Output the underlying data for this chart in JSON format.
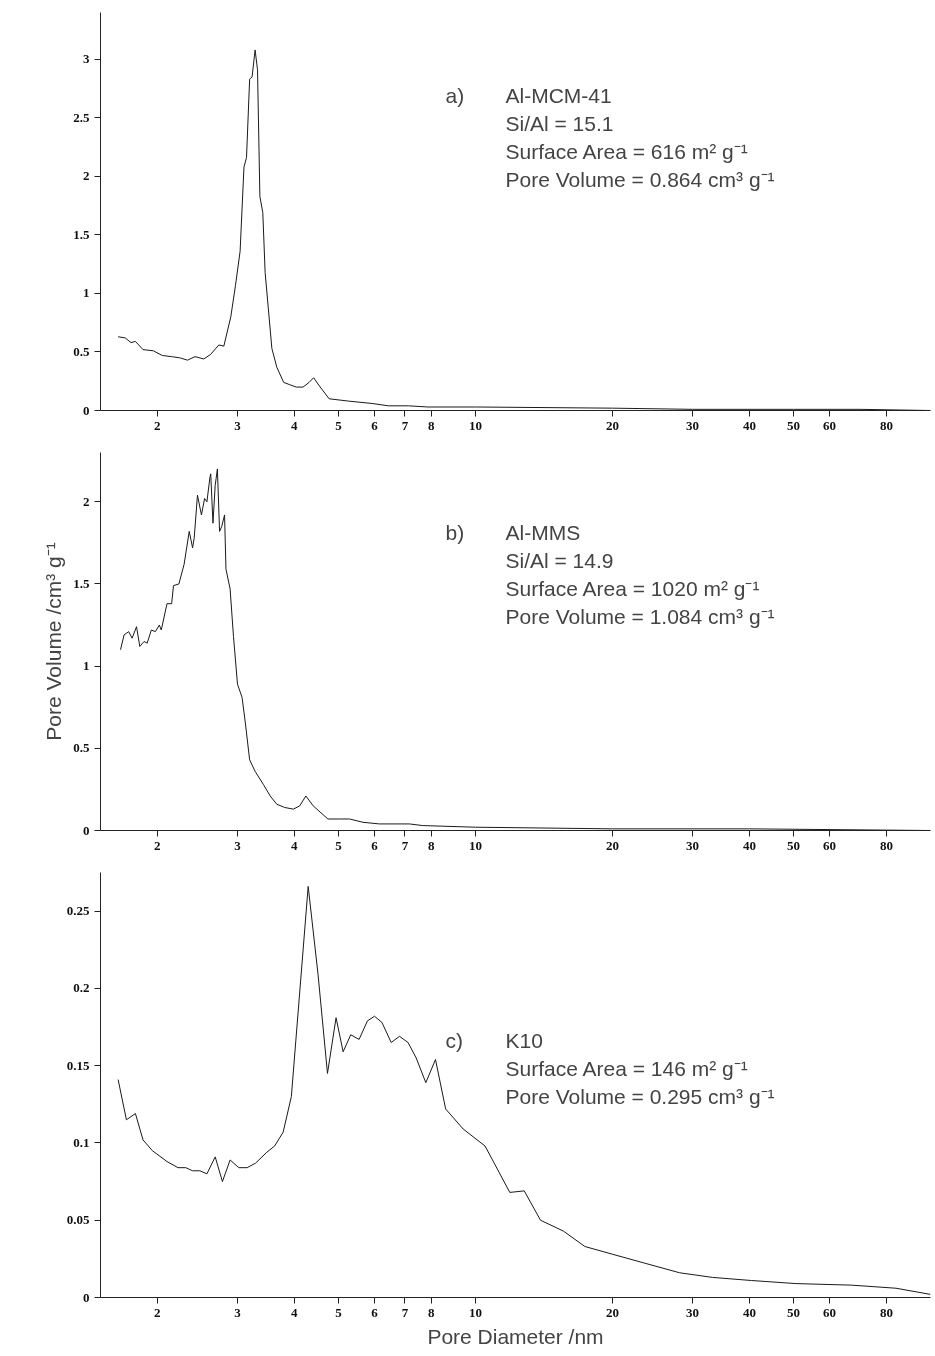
{
  "chart_data": [
    {
      "type": "line",
      "log": "x",
      "grid": false,
      "xlim": [
        1.5,
        100
      ],
      "xticks": [
        2,
        3,
        4,
        5,
        6,
        7,
        8,
        10,
        20,
        30,
        40,
        50,
        60,
        80
      ],
      "ylim": [
        0,
        3.4
      ],
      "yticks": [
        0,
        0.5,
        1,
        1.5,
        2,
        2.5,
        3
      ],
      "annotations": [
        "a)",
        "Al-MCM-41",
        "Si/Al = 15.1",
        "Surface Area = 616 m² g⁻¹",
        "Pore Volume =  0.864 cm³ g⁻¹"
      ],
      "x": [
        1.64,
        1.7,
        1.75,
        1.79,
        1.86,
        1.96,
        2.05,
        2.15,
        2.24,
        2.33,
        2.42,
        2.53,
        2.62,
        2.73,
        2.8,
        2.9,
        2.97,
        3.04,
        3.1,
        3.14,
        3.19,
        3.23,
        3.28,
        3.32,
        3.36,
        3.41,
        3.45,
        3.57,
        3.66,
        3.79,
        3.91,
        4.04,
        4.18,
        4.31,
        4.41,
        4.54,
        4.77,
        5.27,
        5.93,
        6.44,
        7.12,
        7.86,
        10,
        20,
        30,
        50,
        70,
        100
      ],
      "series": [
        {
          "color": "#1a1a1a",
          "values": [
            0.63,
            0.62,
            0.58,
            0.59,
            0.52,
            0.51,
            0.47,
            0.46,
            0.45,
            0.43,
            0.46,
            0.44,
            0.48,
            0.56,
            0.55,
            0.8,
            1.07,
            1.36,
            2.08,
            2.16,
            2.83,
            2.85,
            3.08,
            2.91,
            1.83,
            1.69,
            1.18,
            0.53,
            0.37,
            0.24,
            0.22,
            0.2,
            0.2,
            0.24,
            0.28,
            0.21,
            0.1,
            0.08,
            0.06,
            0.04,
            0.04,
            0.03,
            0.03,
            0.02,
            0.01,
            0.01,
            0.01,
            0
          ]
        }
      ]
    },
    {
      "type": "line",
      "log": "x",
      "grid": false,
      "ylabel": "Pore Volume /cm³ g⁻¹",
      "xlim": [
        1.5,
        100
      ],
      "xticks": [
        2,
        3,
        4,
        5,
        6,
        7,
        8,
        10,
        20,
        30,
        40,
        50,
        60,
        80
      ],
      "ylim": [
        0,
        2.3
      ],
      "yticks": [
        0,
        0.5,
        1,
        1.5,
        2
      ],
      "annotations": [
        "b)",
        "Al-MMS",
        "Si/Al = 14.9",
        "Surface Area = 1020 m² g⁻¹",
        "Pore Volume = 1.084 cm³ g⁻¹"
      ],
      "x": [
        1.66,
        1.69,
        1.73,
        1.76,
        1.8,
        1.83,
        1.87,
        1.9,
        1.94,
        1.98,
        2.02,
        2.04,
        2.1,
        2.15,
        2.17,
        2.23,
        2.29,
        2.35,
        2.39,
        2.41,
        2.45,
        2.5,
        2.54,
        2.57,
        2.61,
        2.62,
        2.65,
        2.68,
        2.71,
        2.74,
        2.77,
        2.81,
        2.83,
        2.89,
        2.94,
        3.0,
        3.07,
        3.12,
        3.19,
        3.28,
        3.42,
        3.54,
        3.66,
        3.81,
        3.98,
        4.11,
        4.24,
        4.4,
        4.74,
        5.03,
        5.29,
        5.66,
        6.15,
        7.16,
        7.66,
        10,
        20,
        40,
        100
      ],
      "series": [
        {
          "color": "#1a1a1a",
          "values": [
            1.1,
            1.19,
            1.21,
            1.17,
            1.24,
            1.12,
            1.15,
            1.14,
            1.22,
            1.21,
            1.25,
            1.22,
            1.38,
            1.38,
            1.49,
            1.5,
            1.62,
            1.82,
            1.72,
            1.78,
            2.04,
            1.92,
            2.02,
            2.0,
            2.15,
            2.17,
            1.87,
            2.1,
            2.2,
            1.82,
            1.85,
            1.92,
            1.59,
            1.47,
            1.18,
            0.89,
            0.81,
            0.66,
            0.43,
            0.36,
            0.28,
            0.21,
            0.16,
            0.14,
            0.13,
            0.15,
            0.21,
            0.15,
            0.07,
            0.07,
            0.07,
            0.05,
            0.04,
            0.04,
            0.03,
            0.02,
            0.01,
            0.01,
            0
          ]
        }
      ]
    },
    {
      "type": "line",
      "log": "x",
      "grid": false,
      "xlabel": "Pore Diameter /nm",
      "xlim": [
        1.5,
        100
      ],
      "xticks": [
        2,
        3,
        4,
        5,
        6,
        7,
        8,
        10,
        20,
        30,
        40,
        50,
        60,
        80
      ],
      "ylim": [
        0,
        0.275
      ],
      "yticks": [
        0,
        0.05,
        0.1,
        0.15,
        0.2,
        0.25
      ],
      "annotations": [
        "c)",
        "K10",
        "Surface Area = 146 m² g⁻¹",
        "Pore Volume = 0.295 cm³ g⁻¹"
      ],
      "x": [
        1.64,
        1.71,
        1.79,
        1.86,
        1.95,
        2.1,
        2.22,
        2.31,
        2.39,
        2.48,
        2.57,
        2.68,
        2.78,
        2.89,
        3.02,
        3.15,
        3.29,
        3.48,
        3.62,
        3.78,
        3.94,
        4.29,
        4.51,
        4.73,
        4.94,
        5.12,
        5.32,
        5.55,
        5.79,
        6.0,
        6.23,
        6.53,
        6.81,
        7.11,
        7.41,
        7.78,
        8.17,
        8.6,
        9.4,
        10.5,
        11.9,
        12.8,
        13.9,
        15.6,
        17.4,
        20.0,
        23.7,
        28.1,
        33.2,
        40.4,
        50.6,
        67.0,
        84.0,
        100
      ],
      "series": [
        {
          "color": "#1a1a1a",
          "values": [
            0.141,
            0.115,
            0.119,
            0.102,
            0.095,
            0.088,
            0.084,
            0.084,
            0.082,
            0.082,
            0.08,
            0.091,
            0.075,
            0.089,
            0.084,
            0.084,
            0.087,
            0.094,
            0.098,
            0.107,
            0.13,
            0.266,
            0.209,
            0.145,
            0.181,
            0.159,
            0.17,
            0.167,
            0.179,
            0.182,
            0.178,
            0.165,
            0.169,
            0.165,
            0.155,
            0.139,
            0.154,
            0.122,
            0.109,
            0.098,
            0.068,
            0.069,
            0.05,
            0.043,
            0.033,
            0.028,
            0.022,
            0.016,
            0.013,
            0.011,
            0.009,
            0.008,
            0.006,
            0.002
          ]
        }
      ]
    }
  ]
}
